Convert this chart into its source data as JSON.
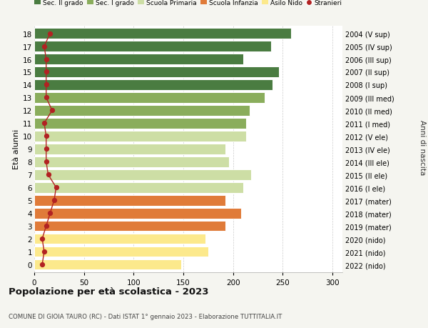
{
  "ages": [
    0,
    1,
    2,
    3,
    4,
    5,
    6,
    7,
    8,
    9,
    10,
    11,
    12,
    13,
    14,
    15,
    16,
    17,
    18
  ],
  "bar_values": [
    148,
    175,
    172,
    192,
    208,
    192,
    210,
    218,
    196,
    192,
    213,
    213,
    217,
    232,
    240,
    246,
    210,
    238,
    258
  ],
  "stranieri_values": [
    8,
    10,
    8,
    12,
    16,
    20,
    22,
    14,
    12,
    12,
    12,
    10,
    18,
    12,
    12,
    12,
    12,
    10,
    16
  ],
  "right_labels": [
    "2022 (nido)",
    "2021 (nido)",
    "2020 (nido)",
    "2019 (mater)",
    "2018 (mater)",
    "2017 (mater)",
    "2016 (I ele)",
    "2015 (II ele)",
    "2014 (III ele)",
    "2013 (IV ele)",
    "2012 (V ele)",
    "2011 (I med)",
    "2010 (II med)",
    "2009 (III med)",
    "2008 (I sup)",
    "2007 (II sup)",
    "2006 (III sup)",
    "2005 (IV sup)",
    "2004 (V sup)"
  ],
  "bar_colors": [
    "#fce98c",
    "#fce98c",
    "#fce98c",
    "#e07b39",
    "#e07b39",
    "#e07b39",
    "#cddea5",
    "#cddea5",
    "#cddea5",
    "#cddea5",
    "#cddea5",
    "#8aad5c",
    "#8aad5c",
    "#8aad5c",
    "#4a7c41",
    "#4a7c41",
    "#4a7c41",
    "#4a7c41",
    "#4a7c41"
  ],
  "legend_labels": [
    "Sec. II grado",
    "Sec. I grado",
    "Scuola Primaria",
    "Scuola Infanzia",
    "Asilo Nido",
    "Stranieri"
  ],
  "legend_colors": [
    "#4a7c41",
    "#8aad5c",
    "#cddea5",
    "#e07b39",
    "#fce98c",
    "#b22222"
  ],
  "ylabel": "Età alunni",
  "right_ylabel": "Anni di nascita",
  "title": "Popolazione per età scolastica - 2023",
  "subtitle": "COMUNE DI GIOIA TAURO (RC) - Dati ISTAT 1° gennaio 2023 - Elaborazione TUTTITALIA.IT",
  "xlim": [
    0,
    310
  ],
  "xticks": [
    0,
    50,
    100,
    150,
    200,
    250,
    300
  ],
  "stranieri_color": "#b22222",
  "background_color": "#f5f5f0",
  "plot_bg_color": "#ffffff"
}
